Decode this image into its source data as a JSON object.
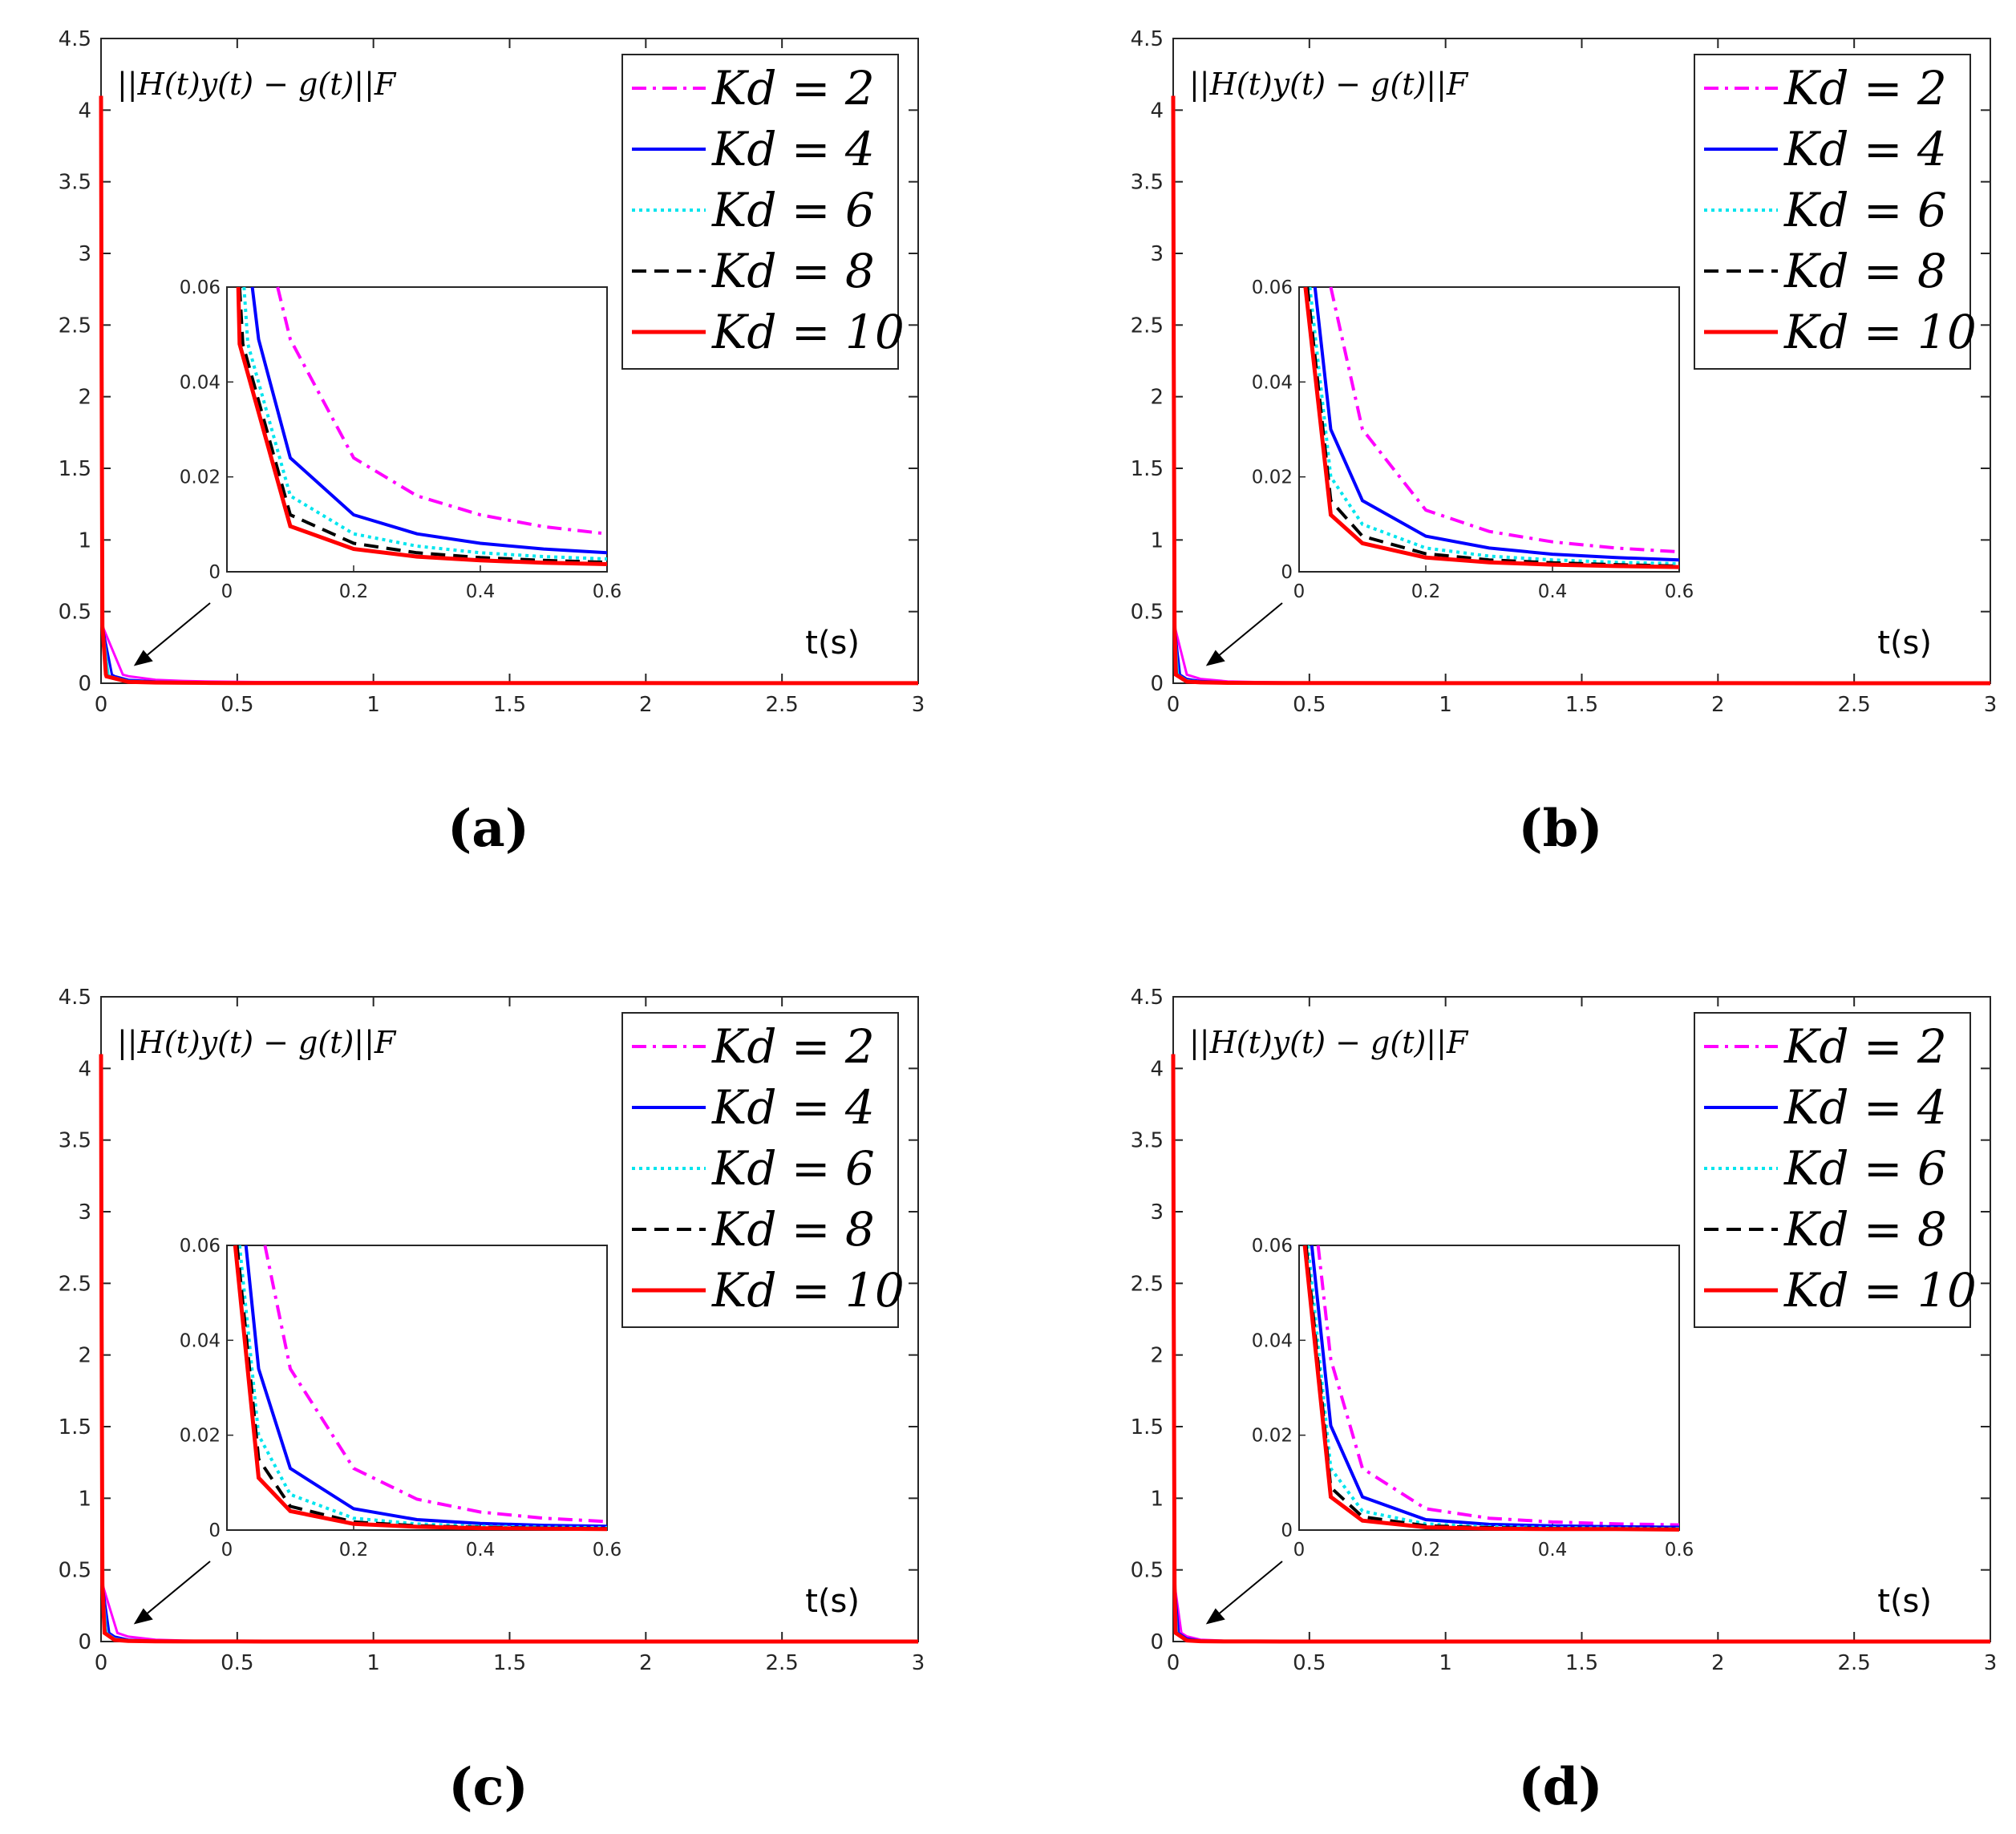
{
  "chart_data": [
    {
      "panel": "(a)",
      "type": "line",
      "xlabel": "t(s)",
      "ylabel": "||H(t)y(t) − g(t)||F",
      "xlim": [
        0,
        3
      ],
      "ylim": [
        0,
        4.5
      ],
      "xticks": [
        "0",
        "0.5",
        "1",
        "1.5",
        "2",
        "2.5",
        "3"
      ],
      "yticks": [
        "0",
        "0.5",
        "1",
        "1.5",
        "2",
        "2.5",
        "3",
        "3.5",
        "4",
        "4.5"
      ],
      "initial_value": 4.1,
      "inset": {
        "xlim": [
          0,
          0.6
        ],
        "ylim": [
          0,
          0.06
        ],
        "xticks": [
          "0",
          "0.2",
          "0.4",
          "0.6"
        ],
        "yticks": [
          "0",
          "0.02",
          "0.04",
          "0.06"
        ]
      },
      "series": [
        {
          "name": "Kd = 2",
          "color": "#ff00ff",
          "style": "dashdot",
          "points": [
            [
              0.08,
              0.06
            ],
            [
              0.1,
              0.049
            ],
            [
              0.2,
              0.024
            ],
            [
              0.3,
              0.016
            ],
            [
              0.4,
              0.012
            ],
            [
              0.5,
              0.0095
            ],
            [
              0.6,
              0.008
            ]
          ]
        },
        {
          "name": "Kd = 4",
          "color": "#0000ff",
          "style": "solid",
          "points": [
            [
              0.04,
              0.06
            ],
            [
              0.05,
              0.049
            ],
            [
              0.1,
              0.024
            ],
            [
              0.2,
              0.012
            ],
            [
              0.3,
              0.008
            ],
            [
              0.4,
              0.006
            ],
            [
              0.5,
              0.0048
            ],
            [
              0.6,
              0.004
            ]
          ]
        },
        {
          "name": "Kd = 6",
          "color": "#00e5ee",
          "style": "dotted",
          "points": [
            [
              0.027,
              0.06
            ],
            [
              0.033,
              0.048
            ],
            [
              0.1,
              0.016
            ],
            [
              0.2,
              0.008
            ],
            [
              0.3,
              0.0054
            ],
            [
              0.4,
              0.004
            ],
            [
              0.5,
              0.0032
            ],
            [
              0.6,
              0.0027
            ]
          ]
        },
        {
          "name": "Kd = 8",
          "color": "#000000",
          "style": "dashed",
          "points": [
            [
              0.02,
              0.06
            ],
            [
              0.025,
              0.048
            ],
            [
              0.1,
              0.012
            ],
            [
              0.2,
              0.006
            ],
            [
              0.3,
              0.004
            ],
            [
              0.4,
              0.003
            ],
            [
              0.5,
              0.0024
            ],
            [
              0.6,
              0.002
            ]
          ]
        },
        {
          "name": "Kd = 10",
          "color": "#ff0000",
          "style": "solid",
          "points": [
            [
              0.018,
              0.06
            ],
            [
              0.02,
              0.048
            ],
            [
              0.1,
              0.0096
            ],
            [
              0.2,
              0.0048
            ],
            [
              0.3,
              0.0032
            ],
            [
              0.4,
              0.0024
            ],
            [
              0.5,
              0.0019
            ],
            [
              0.6,
              0.0016
            ]
          ]
        }
      ]
    },
    {
      "panel": "(b)",
      "type": "line",
      "xlabel": "t(s)",
      "ylabel": "||H(t)y(t) − g(t)||F",
      "xlim": [
        0,
        3
      ],
      "ylim": [
        0,
        4.5
      ],
      "xticks": [
        "0",
        "0.5",
        "1",
        "1.5",
        "2",
        "2.5",
        "3"
      ],
      "yticks": [
        "0",
        "0.5",
        "1",
        "1.5",
        "2",
        "2.5",
        "3",
        "3.5",
        "4",
        "4.5"
      ],
      "initial_value": 4.1,
      "inset": {
        "xlim": [
          0,
          0.6
        ],
        "ylim": [
          0,
          0.06
        ],
        "xticks": [
          "0",
          "0.2",
          "0.4",
          "0.6"
        ],
        "yticks": [
          "0",
          "0.02",
          "0.04",
          "0.06"
        ]
      },
      "series": [
        {
          "name": "Kd = 2",
          "color": "#ff00ff",
          "style": "dashdot",
          "points": [
            [
              0.05,
              0.06
            ],
            [
              0.1,
              0.03
            ],
            [
              0.2,
              0.013
            ],
            [
              0.3,
              0.0085
            ],
            [
              0.4,
              0.0063
            ],
            [
              0.5,
              0.005
            ],
            [
              0.6,
              0.0042
            ]
          ]
        },
        {
          "name": "Kd = 4",
          "color": "#0000ff",
          "style": "solid",
          "points": [
            [
              0.025,
              0.06
            ],
            [
              0.05,
              0.03
            ],
            [
              0.1,
              0.015
            ],
            [
              0.2,
              0.0075
            ],
            [
              0.3,
              0.005
            ],
            [
              0.4,
              0.0037
            ],
            [
              0.5,
              0.003
            ],
            [
              0.6,
              0.0025
            ]
          ]
        },
        {
          "name": "Kd = 6",
          "color": "#00e5ee",
          "style": "dotted",
          "points": [
            [
              0.017,
              0.06
            ],
            [
              0.05,
              0.02
            ],
            [
              0.1,
              0.01
            ],
            [
              0.2,
              0.005
            ],
            [
              0.3,
              0.0033
            ],
            [
              0.4,
              0.0025
            ],
            [
              0.5,
              0.002
            ],
            [
              0.6,
              0.0017
            ]
          ]
        },
        {
          "name": "Kd = 8",
          "color": "#000000",
          "style": "dashed",
          "points": [
            [
              0.013,
              0.06
            ],
            [
              0.05,
              0.015
            ],
            [
              0.1,
              0.0075
            ],
            [
              0.2,
              0.0038
            ],
            [
              0.3,
              0.0025
            ],
            [
              0.4,
              0.0019
            ],
            [
              0.5,
              0.0015
            ],
            [
              0.6,
              0.0012
            ]
          ]
        },
        {
          "name": "Kd = 10",
          "color": "#ff0000",
          "style": "solid",
          "points": [
            [
              0.01,
              0.06
            ],
            [
              0.05,
              0.012
            ],
            [
              0.1,
              0.006
            ],
            [
              0.2,
              0.003
            ],
            [
              0.3,
              0.002
            ],
            [
              0.4,
              0.0015
            ],
            [
              0.5,
              0.0012
            ],
            [
              0.6,
              0.001
            ]
          ]
        }
      ]
    },
    {
      "panel": "(c)",
      "type": "line",
      "xlabel": "t(s)",
      "ylabel": "||H(t)y(t) − g(t)||F",
      "xlim": [
        0,
        3
      ],
      "ylim": [
        0,
        4.5
      ],
      "xticks": [
        "0",
        "0.5",
        "1",
        "1.5",
        "2",
        "2.5",
        "3"
      ],
      "yticks": [
        "0",
        "0.5",
        "1",
        "1.5",
        "2",
        "2.5",
        "3",
        "3.5",
        "4",
        "4.5"
      ],
      "initial_value": 4.1,
      "inset": {
        "xlim": [
          0,
          0.6
        ],
        "ylim": [
          0,
          0.06
        ],
        "xticks": [
          "0",
          "0.2",
          "0.4",
          "0.6"
        ],
        "yticks": [
          "0",
          "0.02",
          "0.04",
          "0.06"
        ]
      },
      "series": [
        {
          "name": "Kd = 2",
          "color": "#ff00ff",
          "style": "dashdot",
          "points": [
            [
              0.06,
              0.06
            ],
            [
              0.1,
              0.034
            ],
            [
              0.2,
              0.013
            ],
            [
              0.3,
              0.0065
            ],
            [
              0.4,
              0.0038
            ],
            [
              0.5,
              0.0025
            ],
            [
              0.6,
              0.0018
            ]
          ]
        },
        {
          "name": "Kd = 4",
          "color": "#0000ff",
          "style": "solid",
          "points": [
            [
              0.03,
              0.06
            ],
            [
              0.05,
              0.034
            ],
            [
              0.1,
              0.013
            ],
            [
              0.2,
              0.0045
            ],
            [
              0.3,
              0.0022
            ],
            [
              0.4,
              0.0014
            ],
            [
              0.5,
              0.001
            ],
            [
              0.6,
              0.0008
            ]
          ]
        },
        {
          "name": "Kd = 6",
          "color": "#00e5ee",
          "style": "dotted",
          "points": [
            [
              0.02,
              0.06
            ],
            [
              0.05,
              0.02
            ],
            [
              0.1,
              0.0075
            ],
            [
              0.2,
              0.0025
            ],
            [
              0.3,
              0.0013
            ],
            [
              0.4,
              0.0008
            ],
            [
              0.5,
              0.0006
            ],
            [
              0.6,
              0.0005
            ]
          ]
        },
        {
          "name": "Kd = 8",
          "color": "#000000",
          "style": "dashed",
          "points": [
            [
              0.016,
              0.06
            ],
            [
              0.05,
              0.015
            ],
            [
              0.1,
              0.005
            ],
            [
              0.2,
              0.0017
            ],
            [
              0.3,
              0.0009
            ],
            [
              0.4,
              0.0006
            ],
            [
              0.5,
              0.0004
            ],
            [
              0.6,
              0.0003
            ]
          ]
        },
        {
          "name": "Kd = 10",
          "color": "#ff0000",
          "style": "solid",
          "points": [
            [
              0.013,
              0.06
            ],
            [
              0.05,
              0.011
            ],
            [
              0.1,
              0.004
            ],
            [
              0.2,
              0.0013
            ],
            [
              0.3,
              0.0007
            ],
            [
              0.4,
              0.0004
            ],
            [
              0.5,
              0.0003
            ],
            [
              0.6,
              0.0002
            ]
          ]
        }
      ]
    },
    {
      "panel": "(d)",
      "type": "line",
      "xlabel": "t(s)",
      "ylabel": "||H(t)y(t) − g(t)||F",
      "xlim": [
        0,
        3
      ],
      "ylim": [
        0,
        4.5
      ],
      "xticks": [
        "0",
        "0.5",
        "1",
        "1.5",
        "2",
        "2.5",
        "3"
      ],
      "yticks": [
        "0",
        "0.5",
        "1",
        "1.5",
        "2",
        "2.5",
        "3",
        "3.5",
        "4",
        "4.5"
      ],
      "initial_value": 4.1,
      "inset": {
        "xlim": [
          0,
          0.6
        ],
        "ylim": [
          0,
          0.06
        ],
        "xticks": [
          "0",
          "0.2",
          "0.4",
          "0.6"
        ],
        "yticks": [
          "0",
          "0.02",
          "0.04",
          "0.06"
        ]
      },
      "series": [
        {
          "name": "Kd = 2",
          "color": "#ff00ff",
          "style": "dashdot",
          "points": [
            [
              0.03,
              0.06
            ],
            [
              0.05,
              0.036
            ],
            [
              0.1,
              0.013
            ],
            [
              0.2,
              0.0045
            ],
            [
              0.3,
              0.0025
            ],
            [
              0.4,
              0.0017
            ],
            [
              0.5,
              0.0013
            ],
            [
              0.6,
              0.0011
            ]
          ]
        },
        {
          "name": "Kd = 4",
          "color": "#0000ff",
          "style": "solid",
          "points": [
            [
              0.02,
              0.06
            ],
            [
              0.05,
              0.022
            ],
            [
              0.1,
              0.007
            ],
            [
              0.2,
              0.0022
            ],
            [
              0.3,
              0.0012
            ],
            [
              0.4,
              0.0009
            ],
            [
              0.5,
              0.0007
            ],
            [
              0.6,
              0.0006
            ]
          ]
        },
        {
          "name": "Kd = 6",
          "color": "#00e5ee",
          "style": "dotted",
          "points": [
            [
              0.014,
              0.06
            ],
            [
              0.05,
              0.013
            ],
            [
              0.1,
              0.004
            ],
            [
              0.2,
              0.0013
            ],
            [
              0.3,
              0.0007
            ],
            [
              0.4,
              0.0005
            ],
            [
              0.5,
              0.0004
            ],
            [
              0.6,
              0.0003
            ]
          ]
        },
        {
          "name": "Kd = 8",
          "color": "#000000",
          "style": "dashed",
          "points": [
            [
              0.011,
              0.06
            ],
            [
              0.05,
              0.009
            ],
            [
              0.1,
              0.0028
            ],
            [
              0.2,
              0.0009
            ],
            [
              0.3,
              0.0005
            ],
            [
              0.4,
              0.0003
            ],
            [
              0.5,
              0.0002
            ],
            [
              0.6,
              0.0002
            ]
          ]
        },
        {
          "name": "Kd = 10",
          "color": "#ff0000",
          "style": "solid",
          "points": [
            [
              0.009,
              0.06
            ],
            [
              0.05,
              0.007
            ],
            [
              0.1,
              0.002
            ],
            [
              0.2,
              0.0006
            ],
            [
              0.3,
              0.0003
            ],
            [
              0.4,
              0.0002
            ],
            [
              0.5,
              0.0002
            ],
            [
              0.6,
              0.0001
            ]
          ]
        }
      ]
    }
  ]
}
